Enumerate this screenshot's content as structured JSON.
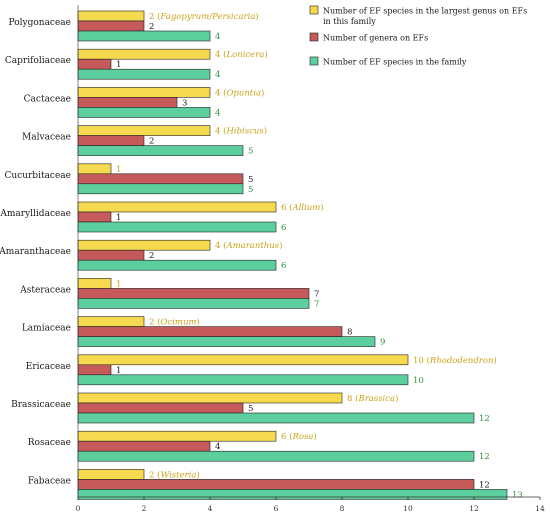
{
  "chart_data": {
    "type": "bar",
    "orientation": "horizontal",
    "xlim": [
      0,
      14
    ],
    "x_ticks": [
      0,
      2,
      4,
      6,
      8,
      10,
      12,
      14
    ],
    "grid": false,
    "legend_position": "top-right",
    "categories": [
      "Polygonaceae",
      "Caprifoliaceae",
      "Cactaceae",
      "Malvaceae",
      "Cucurbitaceae",
      "Amaryllidaceae",
      "Amaranthaceae",
      "Asteraceae",
      "Lamiaceae",
      "Ericaceae",
      "Brassicaceae",
      "Rosaceae",
      "Fabaceae"
    ],
    "series": [
      {
        "name": "Number of EF species in the largest genus on EFs in this family",
        "color": "#f5d94f",
        "label_color": "#c9a21a",
        "values": [
          2,
          4,
          4,
          4,
          1,
          6,
          4,
          1,
          2,
          10,
          8,
          6,
          2
        ],
        "genus_labels": [
          "Fagopyrum/Persicaria",
          "Lonicera",
          "Opuntia",
          "Hibiscus",
          "",
          "Allium",
          "Amaranthus",
          "",
          "Ocimum",
          "Rhododendron",
          "Brassica",
          "Rosa",
          "Wisteria"
        ]
      },
      {
        "name": "Number of genera on EFs",
        "color": "#c65a5a",
        "label_color": "#1a1a1a",
        "values": [
          2,
          1,
          3,
          2,
          5,
          1,
          2,
          7,
          8,
          1,
          5,
          4,
          12
        ]
      },
      {
        "name": "Number of EF species in the family",
        "color": "#5dcf9e",
        "label_color": "#2f8f3f",
        "values": [
          4,
          4,
          4,
          5,
          5,
          6,
          6,
          7,
          9,
          10,
          12,
          12,
          13
        ]
      }
    ]
  }
}
